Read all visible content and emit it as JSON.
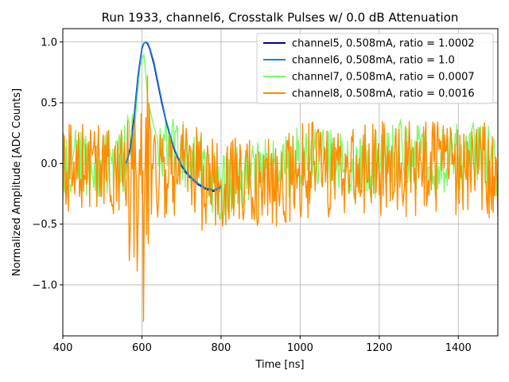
{
  "chart_data": {
    "type": "line",
    "title": "Run 1933, channel6, Crosstalk Pulses w/ 0.0 dB Attenuation",
    "xlabel": "Time [ns]",
    "ylabel": "Normalized Amplitude [ADC Counts]",
    "xlim": [
      400,
      1500
    ],
    "ylim": [
      -1.42,
      1.11
    ],
    "xticks": [
      400,
      600,
      800,
      1000,
      1200,
      1400
    ],
    "xtick_labels": [
      "400",
      "600",
      "800",
      "1000",
      "1200",
      "1400"
    ],
    "yticks": [
      -1.0,
      -0.5,
      0.0,
      0.5,
      1.0
    ],
    "ytick_labels": [
      "−1.0",
      "−0.5",
      "0.0",
      "0.5",
      "1.0"
    ],
    "grid": true,
    "legend_position": "top-right",
    "series": [
      {
        "name": "channel5, 0.508mA, ratio = 1.0002",
        "color": "#00008b",
        "x": [
          560,
          570,
          580,
          590,
          600,
          605,
          610,
          615,
          620,
          630,
          640,
          650,
          660,
          670,
          680,
          690,
          700,
          710,
          720,
          730,
          740,
          750,
          760,
          770,
          780,
          790,
          800
        ],
        "y": [
          0.0,
          0.12,
          0.38,
          0.72,
          0.95,
          0.99,
          1.0,
          0.98,
          0.94,
          0.82,
          0.66,
          0.5,
          0.36,
          0.24,
          0.13,
          0.05,
          -0.02,
          -0.07,
          -0.11,
          -0.14,
          -0.17,
          -0.19,
          -0.21,
          -0.22,
          -0.23,
          -0.22,
          -0.2
        ]
      },
      {
        "name": "channel6, 0.508mA, ratio = 1.0",
        "color": "#1e7fe0",
        "x": [
          560,
          570,
          580,
          590,
          600,
          605,
          610,
          615,
          620,
          630,
          640,
          650,
          660,
          670,
          680,
          690,
          700,
          710,
          720,
          730,
          740,
          750,
          760,
          770,
          780,
          790,
          800
        ],
        "y": [
          0.0,
          0.1,
          0.35,
          0.7,
          0.94,
          0.99,
          1.0,
          0.99,
          0.95,
          0.84,
          0.68,
          0.52,
          0.37,
          0.25,
          0.14,
          0.06,
          -0.01,
          -0.06,
          -0.1,
          -0.13,
          -0.16,
          -0.18,
          -0.2,
          -0.21,
          -0.22,
          -0.21,
          -0.19
        ]
      },
      {
        "name": "channel7, 0.508mA, ratio = 0.0007",
        "color": "#7cfc6a",
        "x": [
          400,
          450,
          500,
          550,
          580,
          595,
          600,
          605,
          610,
          615,
          620,
          630,
          650,
          680,
          700,
          750,
          800,
          850,
          900,
          950,
          1000,
          1050,
          1100,
          1150,
          1200,
          1250,
          1300,
          1350,
          1400,
          1450,
          1500
        ],
        "y": [
          0.0,
          0.02,
          -0.03,
          0.01,
          0.25,
          0.8,
          0.85,
          0.9,
          0.72,
          0.5,
          0.45,
          0.3,
          0.1,
          0.2,
          0.1,
          -0.05,
          -0.2,
          -0.1,
          0.0,
          -0.05,
          0.05,
          0.0,
          0.02,
          -0.05,
          0.0,
          0.1,
          0.05,
          0.0,
          0.05,
          0.1,
          0.0
        ]
      },
      {
        "name": "channel8, 0.508mA, ratio = 0.0016",
        "color": "#ff8c00",
        "x_range": [
          400,
          1500
        ],
        "baseline_mean": -0.05,
        "noise_amplitude": 0.4,
        "min_value": -1.3,
        "max_value": 0.72
      }
    ]
  }
}
